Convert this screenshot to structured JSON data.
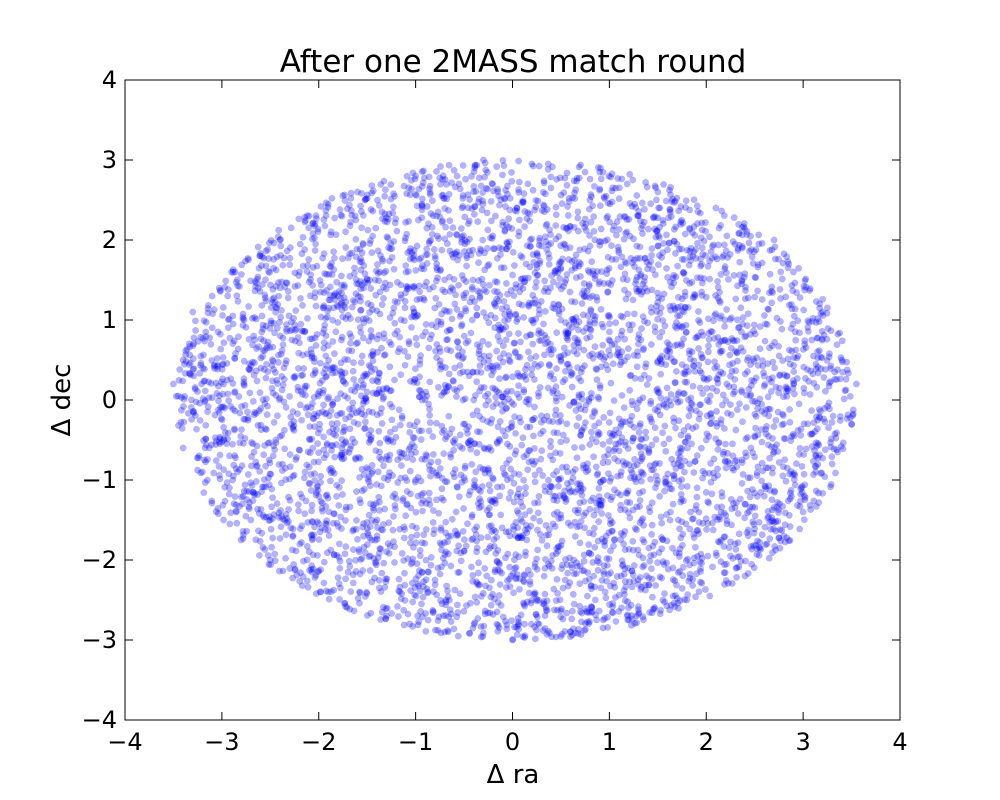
{
  "chart_data": {
    "type": "scatter",
    "title": "After one 2MASS match round",
    "xlabel": "Δ ra",
    "ylabel": "Δ dec",
    "xlim": [
      -4,
      4
    ],
    "ylim": [
      -4,
      4
    ],
    "xticks": [
      -4,
      -3,
      -2,
      -1,
      0,
      1,
      2,
      3,
      4
    ],
    "yticks": [
      -4,
      -3,
      -2,
      -1,
      0,
      1,
      2,
      3,
      4
    ],
    "xtick_labels": [
      "−4",
      "−3",
      "−2",
      "−1",
      "0",
      "1",
      "2",
      "3",
      "4"
    ],
    "ytick_labels": [
      "−4",
      "−3",
      "−2",
      "−1",
      "0",
      "1",
      "2",
      "3",
      "4"
    ],
    "grid": false,
    "legend": false,
    "marker_color": "#0000ff",
    "marker_alpha": 0.3,
    "series": [
      {
        "distribution": "uniform within ellipse centred at (0.03, 0.0), semi-axes about 3.5 in Δ ra and 3.0 in Δ dec",
        "approx_point_count": 5000,
        "points": [
          [
            -3.5,
            0.2
          ],
          [
            -3.4,
            0.5
          ],
          [
            -3.4,
            -0.6
          ],
          [
            -3.3,
            1.1
          ],
          [
            -3.1,
            1.3
          ],
          [
            -2.9,
            1.6
          ],
          [
            -2.7,
            -1.5
          ],
          [
            -2.5,
            -2.0
          ],
          [
            -2.4,
            2.0
          ],
          [
            -2.1,
            2.3
          ],
          [
            -1.9,
            -2.4
          ],
          [
            -1.6,
            2.6
          ],
          [
            -1.3,
            -2.7
          ],
          [
            -1.0,
            2.8
          ],
          [
            -0.7,
            -2.9
          ],
          [
            -0.3,
            3.0
          ],
          [
            0.0,
            -3.0
          ],
          [
            0.2,
            2.95
          ],
          [
            0.6,
            -2.9
          ],
          [
            0.9,
            2.85
          ],
          [
            1.2,
            -2.75
          ],
          [
            1.5,
            2.6
          ],
          [
            1.8,
            -2.5
          ],
          [
            2.1,
            2.4
          ],
          [
            2.4,
            -2.2
          ],
          [
            2.7,
            2.0
          ],
          [
            2.9,
            1.6
          ],
          [
            3.0,
            -1.4
          ],
          [
            3.2,
            1.1
          ],
          [
            3.3,
            -0.8
          ],
          [
            3.4,
            0.5
          ],
          [
            3.55,
            0.2
          ],
          [
            3.5,
            -0.3
          ],
          [
            -3.2,
            -0.9
          ],
          [
            2.8,
            -1.7
          ],
          [
            -0.4,
            0.0
          ],
          [
            0.5,
            0.5
          ],
          [
            -1.0,
            -1.0
          ],
          [
            1.3,
            0.7
          ],
          [
            2.0,
            -0.5
          ]
        ]
      }
    ]
  }
}
